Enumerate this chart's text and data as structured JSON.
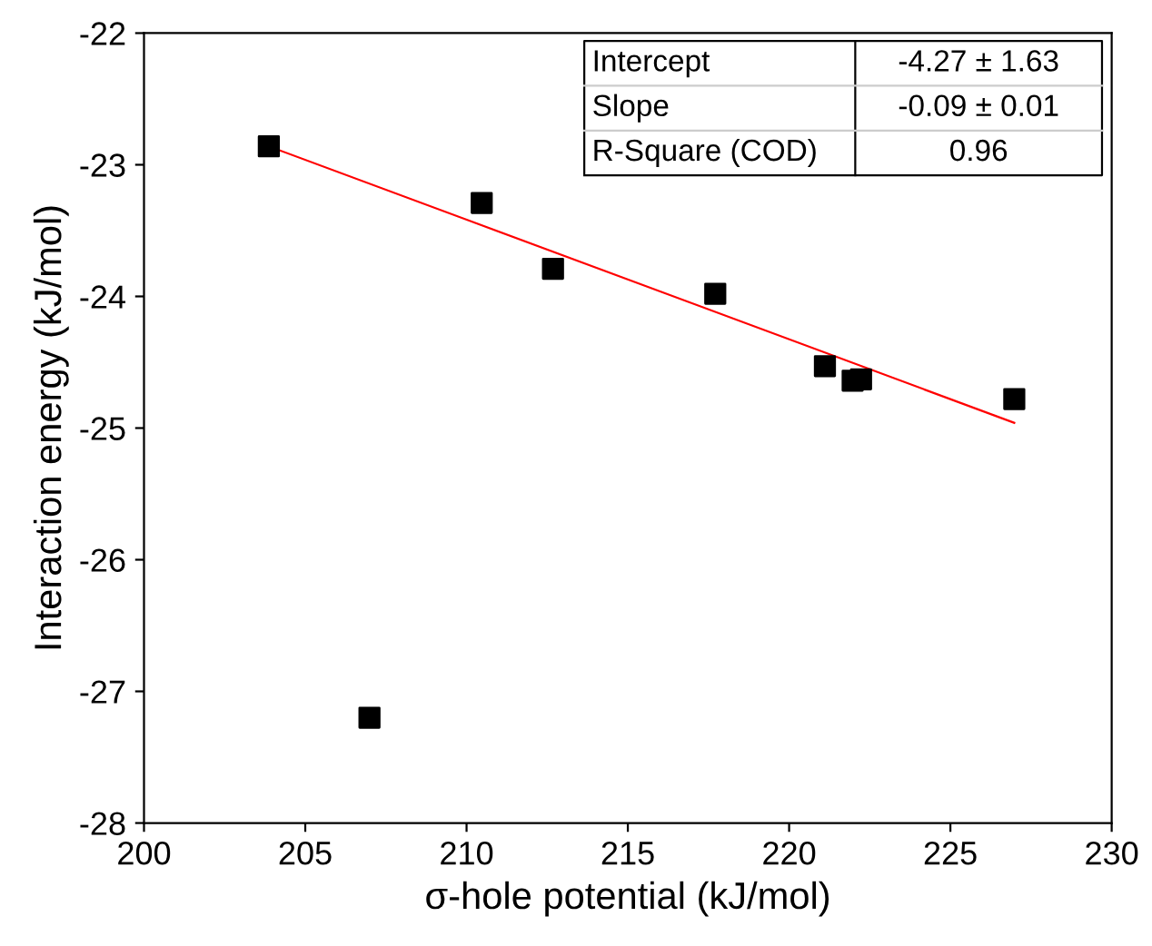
{
  "chart_data": {
    "type": "scatter",
    "xlabel": "σ-hole potential (kJ/mol)",
    "ylabel": "Interaction energy (kJ/mol)",
    "xlim": [
      200,
      230
    ],
    "xticks": [
      200,
      205,
      210,
      215,
      220,
      225,
      230
    ],
    "ylim": [
      -28,
      -22
    ],
    "yticks": [
      -28,
      -27,
      -26,
      -25,
      -24,
      -23,
      -22
    ],
    "grid": false,
    "marker": "square",
    "annotations": [
      "Intercept",
      "-4.27 ± 1.63",
      "Slope",
      "-0.09 ± 0.01",
      "R-Square (COD)",
      "0.96"
    ],
    "series": [
      {
        "color": "#000000",
        "x": [
          203.87,
          206.99,
          210.47,
          212.68,
          217.71,
          221.11,
          221.97,
          222.23,
          226.98
        ],
        "values": [
          -22.86,
          -27.2,
          -23.29,
          -23.79,
          -23.98,
          -24.53,
          -24.64,
          -24.63,
          -24.78
        ]
      },
      {
        "type": "line",
        "marker": "none",
        "color": "#ff0000",
        "x": [
          203.87,
          226.98
        ],
        "values": [
          -22.86,
          -24.96
        ]
      }
    ]
  }
}
